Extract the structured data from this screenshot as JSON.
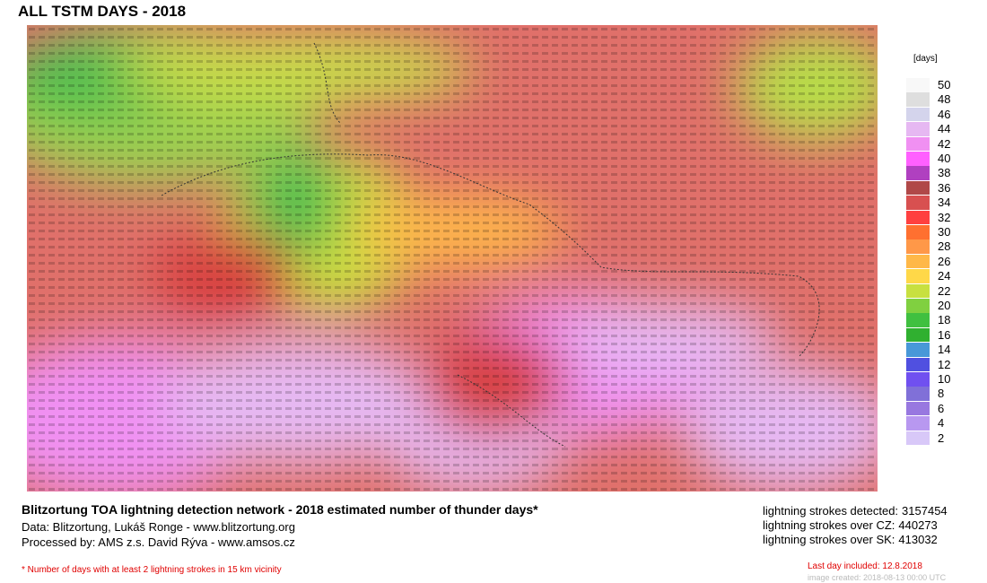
{
  "header": {
    "title": "ALL TSTM DAYS - 2018"
  },
  "legend": {
    "unit": "[days]",
    "levels": [
      {
        "value": 50,
        "color": "#f8f8f8"
      },
      {
        "value": 48,
        "color": "#dedede"
      },
      {
        "value": 46,
        "color": "#d4d4ec"
      },
      {
        "value": 44,
        "color": "#e6b8f2"
      },
      {
        "value": 42,
        "color": "#f090f2"
      },
      {
        "value": 40,
        "color": "#ff60ff"
      },
      {
        "value": 38,
        "color": "#b040c0"
      },
      {
        "value": 36,
        "color": "#b04848"
      },
      {
        "value": 34,
        "color": "#d85050"
      },
      {
        "value": 32,
        "color": "#ff4040"
      },
      {
        "value": 30,
        "color": "#ff7030"
      },
      {
        "value": 28,
        "color": "#ff9848"
      },
      {
        "value": 26,
        "color": "#ffb848"
      },
      {
        "value": 24,
        "color": "#ffd848"
      },
      {
        "value": 22,
        "color": "#c8e040"
      },
      {
        "value": 20,
        "color": "#80d040"
      },
      {
        "value": 18,
        "color": "#40c040"
      },
      {
        "value": 16,
        "color": "#30b030"
      },
      {
        "value": 14,
        "color": "#4898d8"
      },
      {
        "value": 12,
        "color": "#5050e0"
      },
      {
        "value": 10,
        "color": "#7050f0"
      },
      {
        "value": 8,
        "color": "#8070d8"
      },
      {
        "value": 6,
        "color": "#9878e0"
      },
      {
        "value": 4,
        "color": "#b898f0"
      },
      {
        "value": 2,
        "color": "#d8c8f8"
      }
    ]
  },
  "footer": {
    "headline": "Blitzortung TOA lightning detection network - 2018  estimated number of thunder days*",
    "data": "Data: Blitzortung, Lukáš Ronge - www.blitzortung.org",
    "processed": "Processed by: AMS z.s. David Rýva - www.amsos.cz",
    "note": "* Number of days with at least 2 lightning strokes in 15 km vicinity",
    "last_day": "Last day included: 12.8.2018",
    "created": "image created: 2018-08-13 00:00 UTC"
  },
  "stats": [
    {
      "label": "lightning strokes detected:",
      "value": "3157454"
    },
    {
      "label": "lightning strokes over CZ:",
      "value": "440273"
    },
    {
      "label": "lightning strokes over SK:",
      "value": "413032"
    }
  ]
}
